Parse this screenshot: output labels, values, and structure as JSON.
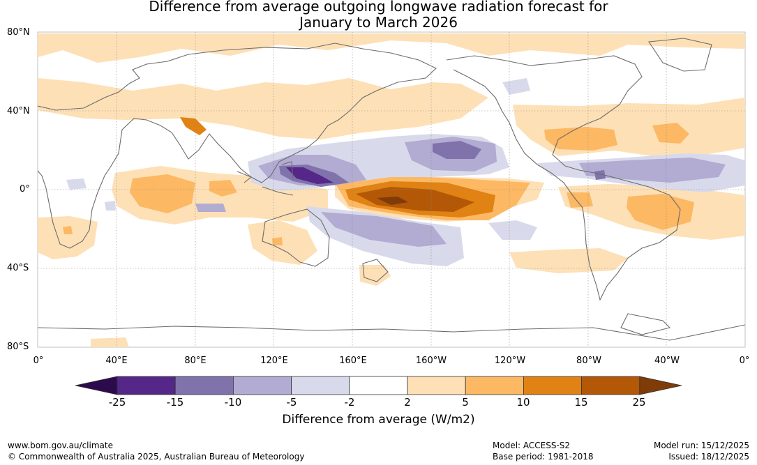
{
  "title": {
    "line1": "Difference from average outgoing longwave radiation forecast for",
    "line2": "January to March 2026"
  },
  "axes": {
    "lat_labels": [
      "80°N",
      "40°N",
      "0°",
      "40°S",
      "80°S"
    ],
    "lon_labels": [
      "0°",
      "40°E",
      "80°E",
      "120°E",
      "160°E",
      "160°W",
      "120°W",
      "80°W",
      "40°W",
      "0°"
    ]
  },
  "legend": {
    "title": "Difference from average (W/m2)",
    "ticks": [
      "-25",
      "-15",
      "-10",
      "-5",
      "-2",
      "2",
      "5",
      "10",
      "15",
      "25"
    ],
    "colors": [
      "#2d0a4e",
      "#542788",
      "#8073ac",
      "#b2abd2",
      "#d8daeb",
      "#ffffff",
      "#fee0b6",
      "#fdb863",
      "#e08214",
      "#b35806",
      "#7f3b08"
    ]
  },
  "footer": {
    "website": "www.bom.gov.au/climate",
    "copyright": "© Commonwealth of Australia 2025, Australian Bureau of Meteorology",
    "model": "Model: ACCESS-S2",
    "base_period": "Base period: 1981-2018",
    "model_run": "Model run: 15/12/2025",
    "issued": "Issued: 18/12/2025"
  }
}
